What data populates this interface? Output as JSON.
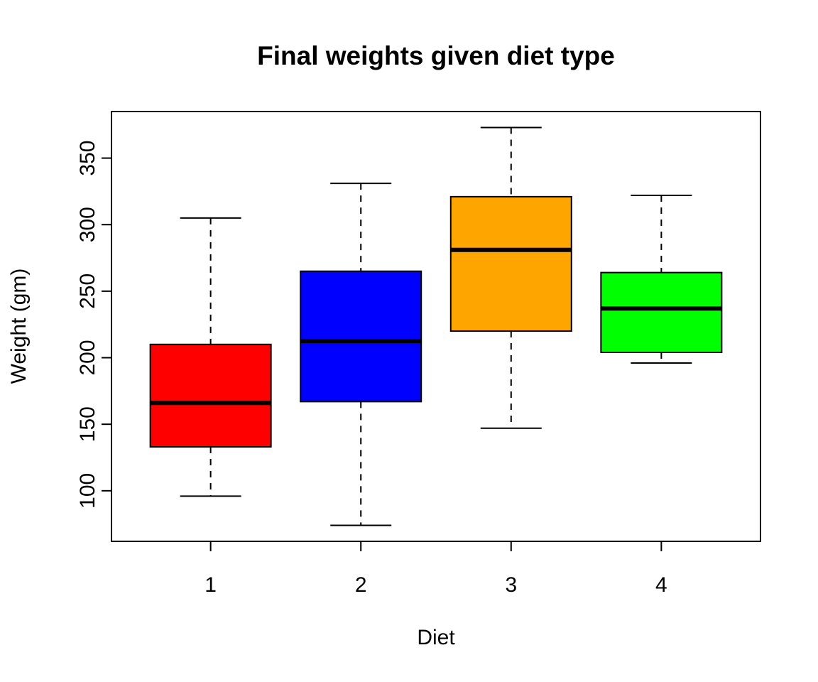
{
  "chart_data": {
    "type": "boxplot",
    "title": "Final weights given diet type",
    "xlabel": "Diet",
    "ylabel": "Weight (gm)",
    "categories": [
      "1",
      "2",
      "3",
      "4"
    ],
    "yticks": [
      100,
      150,
      200,
      250,
      300,
      350
    ],
    "ylim": [
      62,
      385
    ],
    "grid": "off",
    "legend": "none",
    "frame_color": "#000000",
    "background_color": "#ffffff",
    "series": [
      {
        "category": "1",
        "color": "#FF0000",
        "min": 96,
        "q1": 133,
        "median": 166,
        "q3": 210,
        "max": 305,
        "outliers": []
      },
      {
        "category": "2",
        "color": "#0000FF",
        "min": 74,
        "q1": 167,
        "median": 212.5,
        "q3": 265,
        "max": 331,
        "outliers": []
      },
      {
        "category": "3",
        "color": "#FFA500",
        "min": 147,
        "q1": 220,
        "median": 281,
        "q3": 321,
        "max": 373,
        "outliers": []
      },
      {
        "category": "4",
        "color": "#00FF00",
        "min": 196,
        "q1": 204,
        "median": 237,
        "q3": 264,
        "max": 322,
        "outliers": []
      }
    ]
  }
}
